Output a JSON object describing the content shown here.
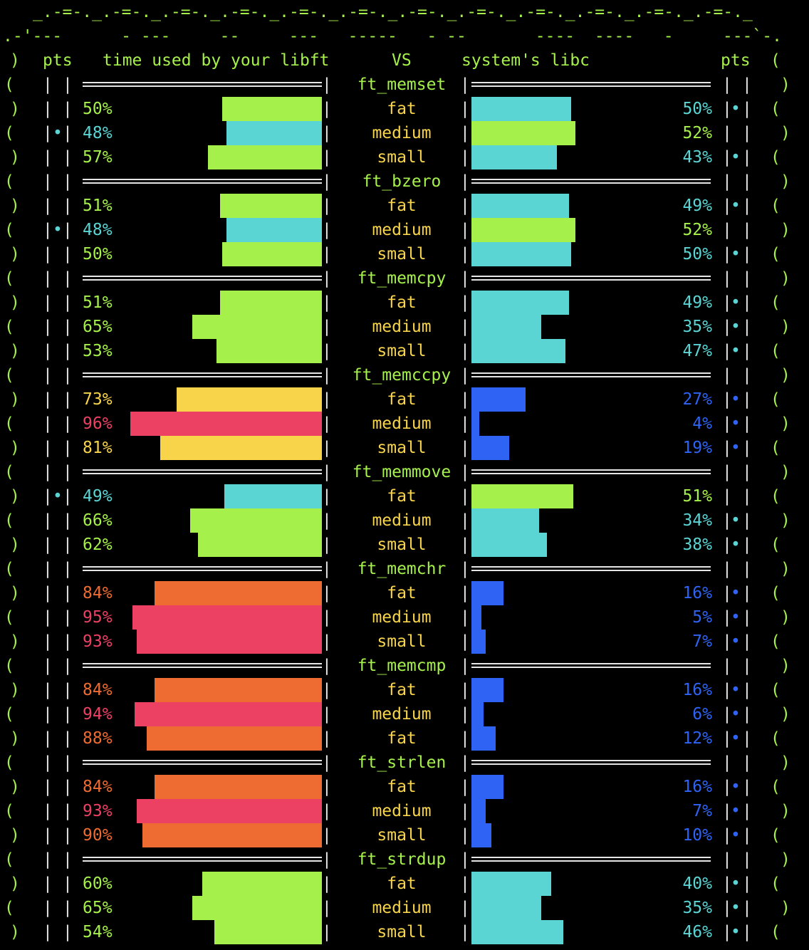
{
  "banner": {
    "top": "_.-=-._.-=-._.-=-._.-=-._.-=-._.-=-._.-=-._.-=-._.-=-._.-=-._.-=-._.-=-._",
    "second": ".-'---      - ---     --     ---   -----   - --       ----  ----   -     ---`-."
  },
  "header": {
    "pts_left": "pts",
    "libft_label": "time used by your libft",
    "vs_label": "VS",
    "libc_label": "system's libc",
    "pts_right": "pts"
  },
  "glyphs": {
    "paren_open": "(",
    "paren_close": ")",
    "pipe": "|",
    "dot": "•"
  },
  "colors": {
    "green": "#a6f04b",
    "cyan": "#5bd4d4",
    "yellow": "#f8d44a",
    "orange": "#ee6b31",
    "red": "#ec4163",
    "blue": "#2f63f4",
    "white": "#e6e6e6"
  },
  "functions": [
    {
      "name": "ft_memset",
      "rows": [
        {
          "size": "fat",
          "libft": "50%",
          "libc": "50%",
          "libft_color": "green",
          "libc_color": "cyan",
          "dot": "right"
        },
        {
          "size": "medium",
          "libft": "48%",
          "libc": "52%",
          "libft_color": "cyan",
          "libc_color": "green",
          "dot": "left"
        },
        {
          "size": "small",
          "libft": "57%",
          "libc": "43%",
          "libft_color": "green",
          "libc_color": "cyan",
          "dot": "right"
        }
      ]
    },
    {
      "name": "ft_bzero",
      "rows": [
        {
          "size": "fat",
          "libft": "51%",
          "libc": "49%",
          "libft_color": "green",
          "libc_color": "cyan",
          "dot": "right"
        },
        {
          "size": "medium",
          "libft": "48%",
          "libc": "52%",
          "libft_color": "cyan",
          "libc_color": "green",
          "dot": "left"
        },
        {
          "size": "small",
          "libft": "50%",
          "libc": "50%",
          "libft_color": "green",
          "libc_color": "cyan",
          "dot": "right"
        }
      ]
    },
    {
      "name": "ft_memcpy",
      "rows": [
        {
          "size": "fat",
          "libft": "51%",
          "libc": "49%",
          "libft_color": "green",
          "libc_color": "cyan",
          "dot": "right"
        },
        {
          "size": "medium",
          "libft": "65%",
          "libc": "35%",
          "libft_color": "green",
          "libc_color": "cyan",
          "dot": "right"
        },
        {
          "size": "small",
          "libft": "53%",
          "libc": "47%",
          "libft_color": "green",
          "libc_color": "cyan",
          "dot": "right"
        }
      ]
    },
    {
      "name": "ft_memccpy",
      "rows": [
        {
          "size": "fat",
          "libft": "73%",
          "libc": "27%",
          "libft_color": "yellow",
          "libc_color": "blue",
          "dot": "right"
        },
        {
          "size": "medium",
          "libft": "96%",
          "libc": "4%",
          "libft_color": "red",
          "libc_color": "blue",
          "dot": "right"
        },
        {
          "size": "small",
          "libft": "81%",
          "libc": "19%",
          "libft_color": "yellow",
          "libc_color": "blue",
          "dot": "right"
        }
      ]
    },
    {
      "name": "ft_memmove",
      "rows": [
        {
          "size": "fat",
          "libft": "49%",
          "libc": "51%",
          "libft_color": "cyan",
          "libc_color": "green",
          "dot": "left"
        },
        {
          "size": "medium",
          "libft": "66%",
          "libc": "34%",
          "libft_color": "green",
          "libc_color": "cyan",
          "dot": "right"
        },
        {
          "size": "small",
          "libft": "62%",
          "libc": "38%",
          "libft_color": "green",
          "libc_color": "cyan",
          "dot": "right"
        }
      ]
    },
    {
      "name": "ft_memchr",
      "rows": [
        {
          "size": "fat",
          "libft": "84%",
          "libc": "16%",
          "libft_color": "orange",
          "libc_color": "blue",
          "dot": "right"
        },
        {
          "size": "medium",
          "libft": "95%",
          "libc": "5%",
          "libft_color": "red",
          "libc_color": "blue",
          "dot": "right"
        },
        {
          "size": "small",
          "libft": "93%",
          "libc": "7%",
          "libft_color": "red",
          "libc_color": "blue",
          "dot": "right"
        }
      ]
    },
    {
      "name": "ft_memcmp",
      "rows": [
        {
          "size": "fat",
          "libft": "84%",
          "libc": "16%",
          "libft_color": "orange",
          "libc_color": "blue",
          "dot": "right"
        },
        {
          "size": "medium",
          "libft": "94%",
          "libc": "6%",
          "libft_color": "red",
          "libc_color": "blue",
          "dot": "right"
        },
        {
          "size": "fat",
          "libft": "88%",
          "libc": "12%",
          "libft_color": "orange",
          "libc_color": "blue",
          "dot": "right"
        }
      ]
    },
    {
      "name": "ft_strlen",
      "rows": [
        {
          "size": "fat",
          "libft": "84%",
          "libc": "16%",
          "libft_color": "orange",
          "libc_color": "blue",
          "dot": "right"
        },
        {
          "size": "medium",
          "libft": "93%",
          "libc": "7%",
          "libft_color": "red",
          "libc_color": "blue",
          "dot": "right"
        },
        {
          "size": "small",
          "libft": "90%",
          "libc": "10%",
          "libft_color": "orange",
          "libc_color": "blue",
          "dot": "right"
        }
      ]
    },
    {
      "name": "ft_strdup",
      "rows": [
        {
          "size": "fat",
          "libft": "60%",
          "libc": "40%",
          "libft_color": "green",
          "libc_color": "cyan",
          "dot": "right"
        },
        {
          "size": "medium",
          "libft": "65%",
          "libc": "35%",
          "libft_color": "green",
          "libc_color": "cyan",
          "dot": "right"
        },
        {
          "size": "small",
          "libft": "54%",
          "libc": "46%",
          "libft_color": "green",
          "libc_color": "cyan",
          "dot": "right"
        }
      ]
    }
  ]
}
